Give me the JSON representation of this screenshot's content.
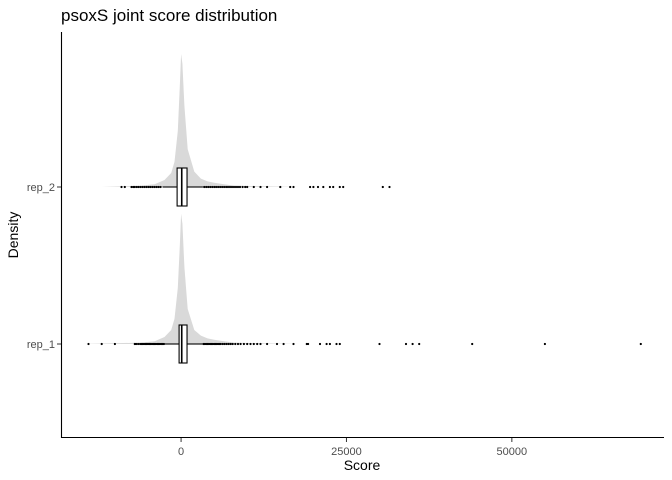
{
  "chart_data": {
    "type": "ridgeline-boxplot",
    "title": "psoxS joint score distribution",
    "xlabel": "Score",
    "ylabel": "Density",
    "xlim": [
      -18000,
      73000
    ],
    "x_ticks": [
      0,
      25000,
      50000
    ],
    "x_tick_labels": [
      "0",
      "25000",
      "50000"
    ],
    "categories": [
      "rep_1",
      "rep_2"
    ],
    "series": [
      {
        "name": "rep_1",
        "box": {
          "q1": -300,
          "median": 100,
          "q3": 900,
          "whisker_low": -2500,
          "whisker_high": 3300
        },
        "density": [
          [
            -15000,
            0.0
          ],
          [
            -6000,
            0.01
          ],
          [
            -4000,
            0.02
          ],
          [
            -2500,
            0.05
          ],
          [
            -1500,
            0.1
          ],
          [
            -1000,
            0.18
          ],
          [
            -500,
            0.4
          ],
          [
            -200,
            0.7
          ],
          [
            0,
            0.93
          ],
          [
            200,
            0.86
          ],
          [
            500,
            0.55
          ],
          [
            1000,
            0.25
          ],
          [
            2000,
            0.1
          ],
          [
            3000,
            0.06
          ],
          [
            4000,
            0.04
          ],
          [
            5000,
            0.03
          ],
          [
            6500,
            0.02
          ],
          [
            8000,
            0.01
          ],
          [
            12000,
            0.005
          ],
          [
            18000,
            0.0
          ]
        ],
        "outliers": [
          -14000,
          -12000,
          -10000,
          -7000,
          -6800,
          -6500,
          -6200,
          -6000,
          -5800,
          -5600,
          -5400,
          -5200,
          -5000,
          -4800,
          -4600,
          -4400,
          -4200,
          -4000,
          -3800,
          -3600,
          -3400,
          -3200,
          -3000,
          -2800,
          -2600,
          3400,
          3600,
          3800,
          4000,
          4200,
          4400,
          4600,
          4800,
          5000,
          5200,
          5400,
          5600,
          5800,
          6000,
          6300,
          6600,
          6900,
          7200,
          7500,
          7800,
          8200,
          8600,
          9000,
          9500,
          10000,
          10500,
          11000,
          11500,
          12000,
          13000,
          14500,
          15500,
          17000,
          19000,
          19200,
          21000,
          22000,
          22500,
          23500,
          24000,
          30000,
          34000,
          35000,
          36000,
          44000,
          55000,
          69500
        ]
      },
      {
        "name": "rep_2",
        "box": {
          "q1": -600,
          "median": 100,
          "q3": 900,
          "whisker_low": -2800,
          "whisker_high": 3300
        },
        "density": [
          [
            -12000,
            0.0
          ],
          [
            -6000,
            0.01
          ],
          [
            -4000,
            0.02
          ],
          [
            -2500,
            0.05
          ],
          [
            -1500,
            0.1
          ],
          [
            -1000,
            0.18
          ],
          [
            -500,
            0.4
          ],
          [
            -200,
            0.72
          ],
          [
            0,
            0.95
          ],
          [
            200,
            0.88
          ],
          [
            500,
            0.58
          ],
          [
            1000,
            0.27
          ],
          [
            2000,
            0.11
          ],
          [
            3000,
            0.06
          ],
          [
            4000,
            0.04
          ],
          [
            5000,
            0.03
          ],
          [
            6500,
            0.02
          ],
          [
            8000,
            0.01
          ],
          [
            12000,
            0.005
          ],
          [
            18000,
            0.0
          ]
        ],
        "outliers": [
          -9000,
          -8500,
          -7500,
          -7200,
          -7000,
          -6700,
          -6400,
          -6100,
          -5800,
          -5500,
          -5200,
          -4900,
          -4600,
          -4300,
          -4000,
          -3700,
          -3400,
          -3100,
          3500,
          3800,
          4100,
          4400,
          4700,
          5000,
          5300,
          5600,
          5900,
          6200,
          6500,
          6800,
          7100,
          7400,
          7700,
          8000,
          8300,
          8600,
          8900,
          9300,
          9700,
          10000,
          11000,
          12000,
          13000,
          15000,
          16500,
          17000,
          19500,
          20000,
          20700,
          21500,
          22500,
          23000,
          24000,
          24500,
          30500,
          31500
        ]
      }
    ],
    "grid": false,
    "legend": "none"
  }
}
